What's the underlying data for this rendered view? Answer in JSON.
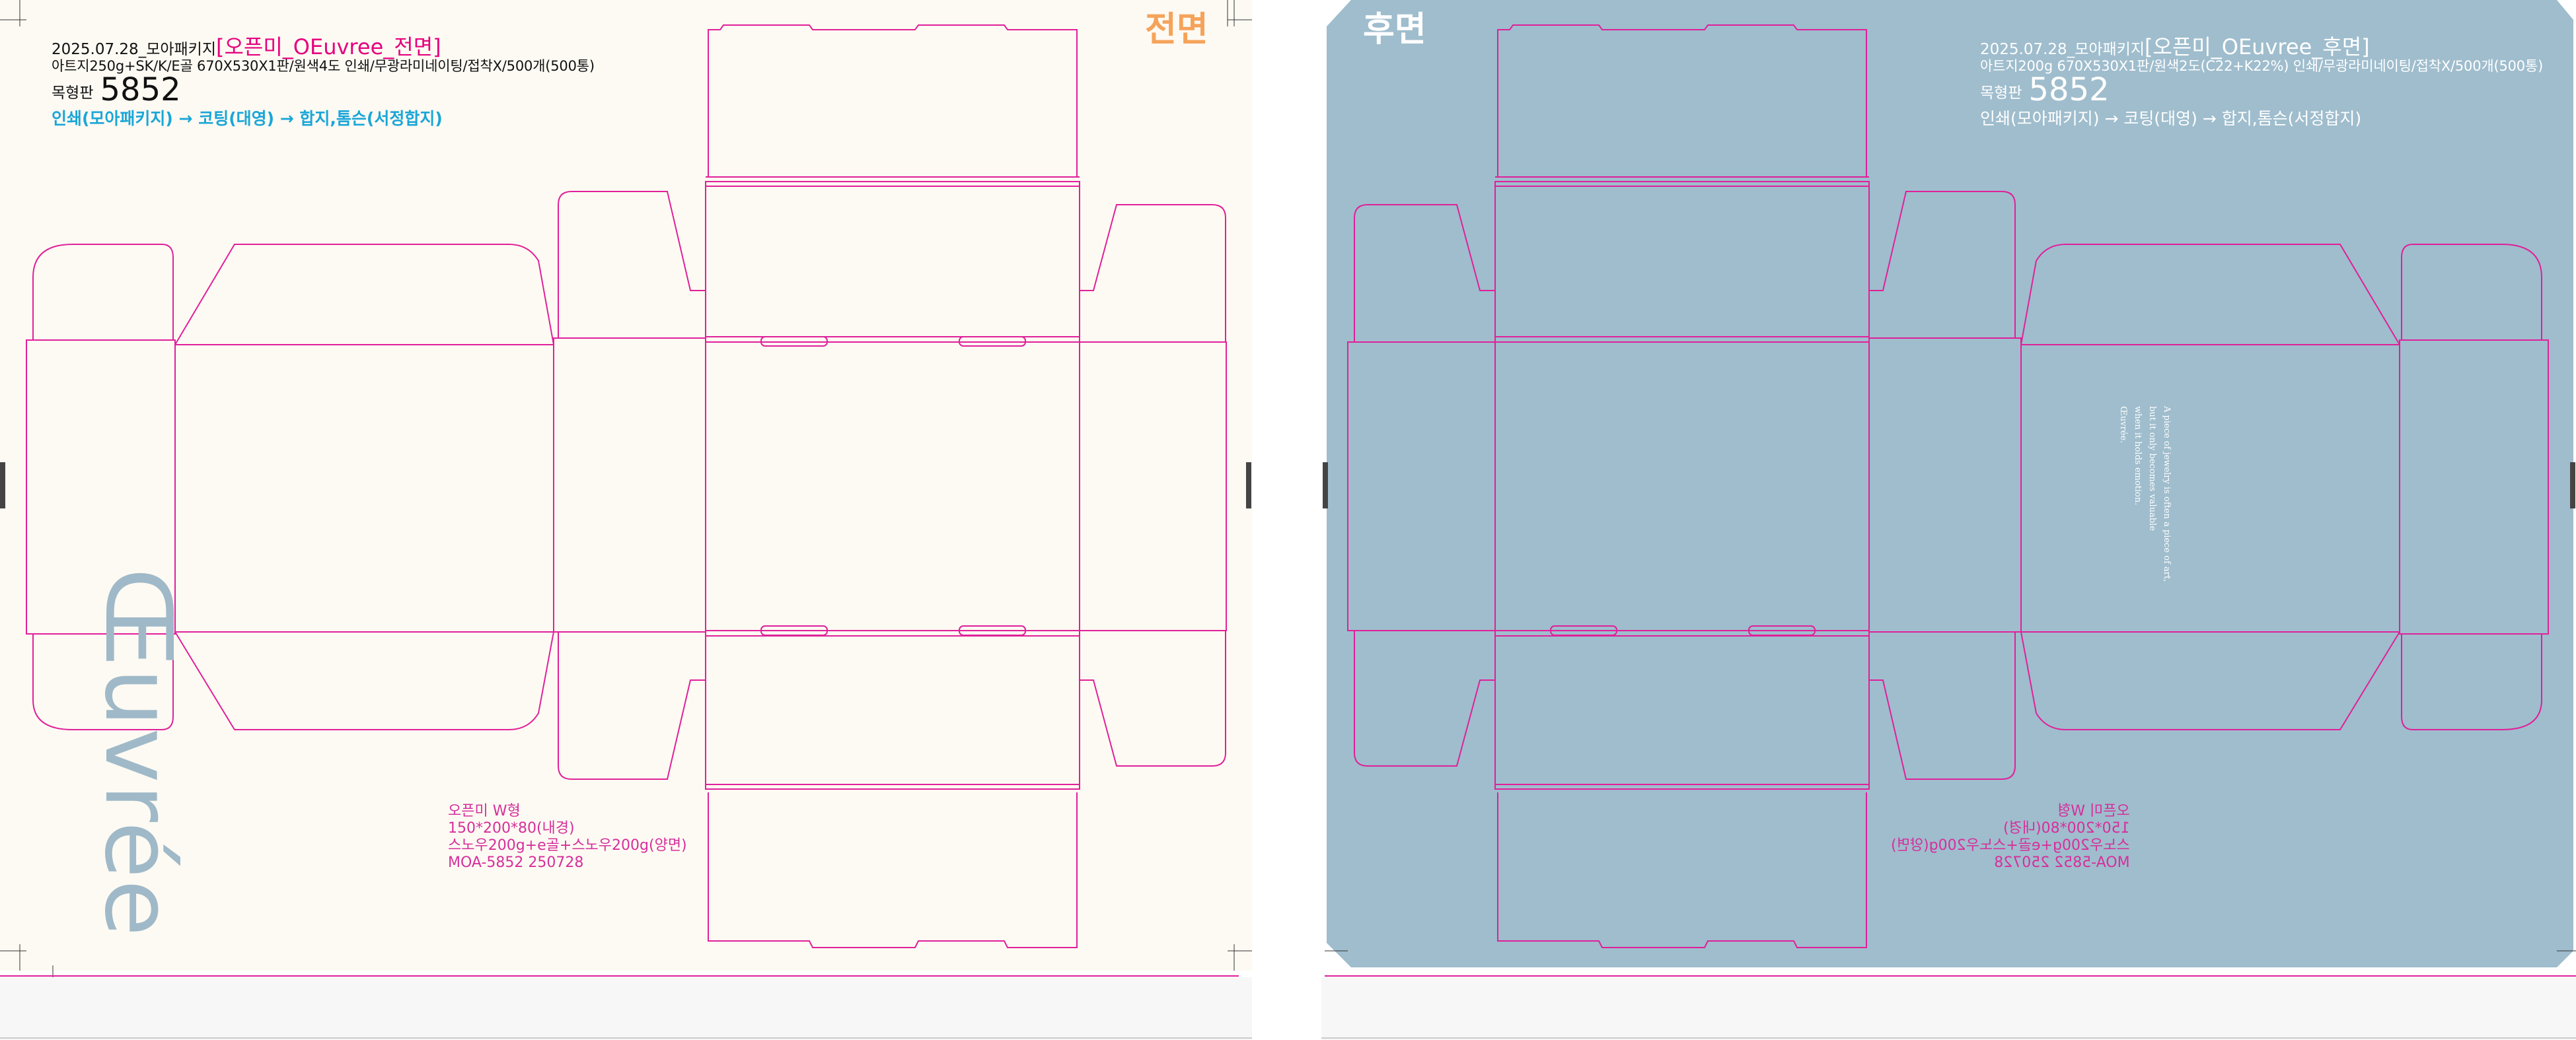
{
  "front": {
    "date_prefix": "2025.07.28_모아패키지",
    "title": "[오픈미_OEuvree_전면]",
    "spec_line": "아트지250g+SK/K/E골 670X530X1판/원색4도 인쇄/무광라미네이팅/접착X/500개(500통)",
    "wood_label": "목형판",
    "wood_number": "5852",
    "process": "인쇄(모아패키지) → 코팅(대영) → 합지,톰슨(서정합지)",
    "side_badge": "전면",
    "logo_text": "Œuvrée",
    "product_spec": [
      "오픈미 W형",
      "150*200*80(내경)",
      "스노우200g+e골+스노우200g(양면)",
      "MOA-5852     250728"
    ]
  },
  "back": {
    "side_badge": "후면",
    "date_prefix": "2025.07.28_모아패키지",
    "title": "[오픈미_OEuvree_후면]",
    "spec_line": "아트지200g 670X530X1판/원색2도(C22+K22%) 인쇄/무광라미네이팅/접착X/500개(500통)",
    "wood_label": "목형판",
    "wood_number": "5852",
    "process": "인쇄(모아패키지) → 코팅(대영) → 합지,톰슨(서정합지)",
    "quote_lines": [
      "A piece of jewelry is often a piece of art,",
      "but it only becomes valuable",
      "when it holds emotion.",
      "Œuvrée."
    ],
    "product_spec": [
      "오픈미 W형",
      "150*200*80(내경)",
      "스노우200g+e골+스노우200g(양면)",
      "MOA-5852     250728"
    ]
  },
  "colors": {
    "dieline": "#e0209a",
    "back_fill": "#9fbdcd",
    "front_bg": "#fdfaf3",
    "process_blue": "#1aa6d8",
    "front_badge": "#f5a35a",
    "title_magenta": "#e6007e"
  }
}
